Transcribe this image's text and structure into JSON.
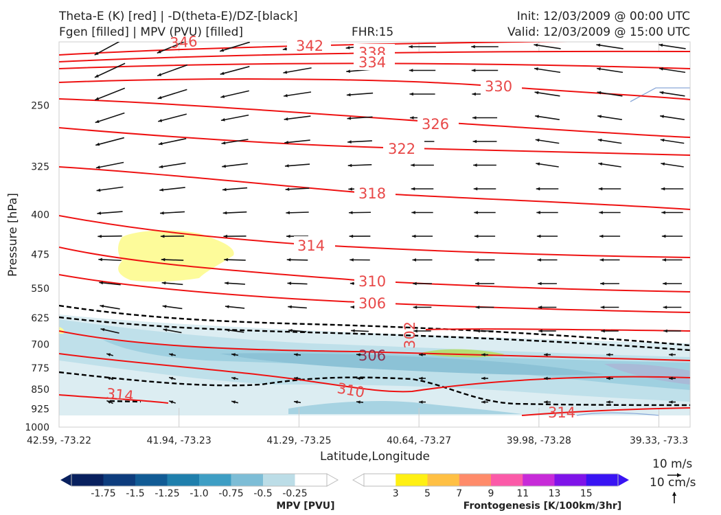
{
  "header": {
    "line1_left": "Theta-E (K) [red] | -D(theta-E)/DZ-[black]",
    "line2_left": "Fgen [filled] | MPV (PVU) [filled]",
    "fhr": "FHR:15",
    "init": "Init: 12/03/2009 @ 00:00 UTC",
    "valid": "Valid: 12/03/2009 @ 15:00 UTC"
  },
  "chart_data": {
    "type": "contour",
    "xlabel": "Latitude,Longitude",
    "ylabel": "Pressure [hPa]",
    "x_ticks": [
      "42.59, -73.22",
      "41.94, -73.23",
      "41.29, -73.25",
      "40.64, -73.27",
      "39.98, -73.28",
      "39.33, -73.3"
    ],
    "y_ticks": [
      250,
      325,
      400,
      475,
      550,
      625,
      700,
      775,
      850,
      925,
      1000
    ],
    "ylim": [
      1000,
      190
    ],
    "y_scale": "log-pressure",
    "theta_e_color": "#ee1111",
    "theta_e_contours": [
      {
        "level": 342,
        "label": "342"
      },
      {
        "level": 338,
        "label": "338"
      },
      {
        "level": 334,
        "label": "334"
      },
      {
        "level": 330,
        "label": "330"
      },
      {
        "level": 326,
        "label": "326"
      },
      {
        "level": 322,
        "label": "322"
      },
      {
        "level": 318,
        "label": "318"
      },
      {
        "level": 314,
        "label": "314"
      },
      {
        "level": 310,
        "label": "310"
      },
      {
        "level": 306,
        "label": "306"
      },
      {
        "level": 302,
        "label": "302"
      },
      {
        "level": 306,
        "label": "306"
      },
      {
        "level": 310,
        "label": "310"
      },
      {
        "level": 314,
        "label": "314"
      },
      {
        "level": 314,
        "label": "314"
      },
      {
        "level": 346,
        "label": "346"
      }
    ],
    "mpv_colorbar": {
      "title": "MPV [PVU]",
      "ticks": [
        "-1.75",
        "-1.5",
        "-1.25",
        "-1.0",
        "-0.75",
        "-0.5",
        "-0.25"
      ],
      "colors": [
        "#08205e",
        "#0d3c7d",
        "#115b95",
        "#1f7fac",
        "#3e9ec4",
        "#7dbdd6",
        "#bcdde7",
        "#ffffff"
      ]
    },
    "fgen_colorbar": {
      "title": "Frontogenesis [K/100km/3hr]",
      "ticks": [
        "3",
        "5",
        "7",
        "9",
        "11",
        "13",
        "15"
      ],
      "colors": [
        "#ffffff",
        "#fff013",
        "#ffc044",
        "#ff8b6a",
        "#fb5aa8",
        "#c72bd8",
        "#7f14e9",
        "#3914f3"
      ]
    },
    "vector_key": {
      "label1": "10 m/s",
      "label2": "10 cm/s"
    }
  }
}
